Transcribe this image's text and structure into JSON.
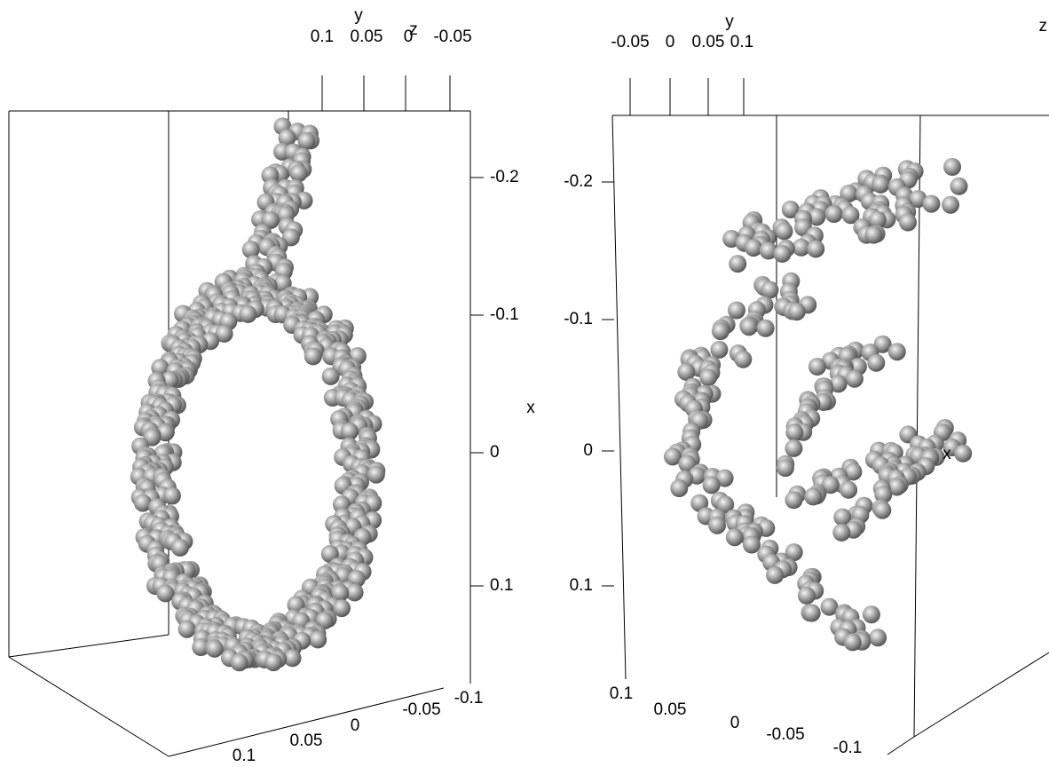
{
  "left": {
    "axis_labels": {
      "top_y": "y",
      "top_z": "z",
      "side": "x"
    },
    "top_ticks": [
      "0.1",
      "0.05",
      "0",
      "-0.05"
    ],
    "right_ticks": [
      "-0.2",
      "-0.1",
      "0",
      "0.1"
    ],
    "bottom_ticks": [
      "0.1",
      "0.05",
      "0",
      "-0.05",
      "-0.1"
    ]
  },
  "right": {
    "axis_labels": {
      "top_y": "y",
      "top_z": "z",
      "side": "x"
    },
    "top_ticks": [
      "-0.05",
      "0",
      "0.05",
      "0.1"
    ],
    "left_ticks": [
      "-0.2",
      "-0.1",
      "0",
      "0.1"
    ],
    "bottom_ticks": [
      "0.1",
      "0.05",
      "0",
      "-0.05",
      "-0.1"
    ]
  }
}
